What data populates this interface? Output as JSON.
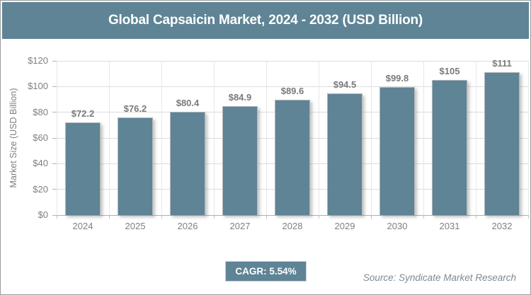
{
  "header": {
    "title": "Global Capsaicin Market, 2024 - 2032 (USD Billion)"
  },
  "chart_data": {
    "type": "bar",
    "title": "Global Capsaicin Market, 2024 - 2032 (USD Billion)",
    "categories": [
      "2024",
      "2025",
      "2026",
      "2027",
      "2028",
      "2029",
      "2030",
      "2031",
      "2032"
    ],
    "values": [
      72.2,
      76.2,
      80.4,
      84.9,
      89.6,
      94.5,
      99.8,
      105,
      111
    ],
    "value_labels": [
      "$72.2",
      "$76.2",
      "$80.4",
      "$84.9",
      "$89.6",
      "$94.5",
      "$99.8",
      "$105",
      "$111"
    ],
    "xlabel": "",
    "ylabel": "Market Size (USD Billion)",
    "ylim": [
      0,
      120
    ],
    "ytick_step": 20,
    "ytick_labels": [
      "$0",
      "$20",
      "$40",
      "$60",
      "$80",
      "$100",
      "$120"
    ],
    "grid": true,
    "legend": "none",
    "bar_color": "#5e8495"
  },
  "footer": {
    "cagr_label": "CAGR: 5.54%",
    "source": "Source: Syndicate Market Research"
  },
  "colors": {
    "accent": "#5e8495",
    "header_bg": "#5e8495",
    "bar": "#5e8495",
    "axis_text": "#7f7f7f",
    "data_label_text": "#7a7a7a",
    "gridline": "#dcdcdc",
    "frame_border": "#9c9c9c",
    "source_text": "#7d8a94",
    "title_text": "#ffffff"
  }
}
